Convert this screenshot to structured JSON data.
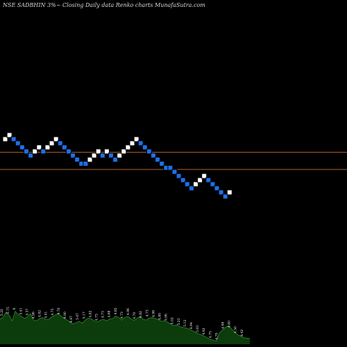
{
  "header": {
    "title": "NSE SADBHIN  3%~  Closing Daily data  Renko  charts MunafaSutra.com"
  },
  "colors": {
    "background": "#000000",
    "up_brick": "#ffffff",
    "down_brick": "#1e6fe8",
    "brick_outline": "#000000",
    "support_line": "#b4622e",
    "volume_fill": "#0c3b0c",
    "volume_line": "#2e8b2e"
  },
  "chart_data": [
    {
      "type": "renko",
      "title": "",
      "xlabel": "",
      "ylabel": "",
      "brick_size_pct": 3,
      "bricks": [
        {
          "dir": "up",
          "level": 0
        },
        {
          "dir": "up",
          "level": 1
        },
        {
          "dir": "down",
          "level": 0
        },
        {
          "dir": "down",
          "level": -1
        },
        {
          "dir": "down",
          "level": -2
        },
        {
          "dir": "down",
          "level": -3
        },
        {
          "dir": "down",
          "level": -4
        },
        {
          "dir": "up",
          "level": -3
        },
        {
          "dir": "up",
          "level": -2
        },
        {
          "dir": "down",
          "level": -3
        },
        {
          "dir": "up",
          "level": -2
        },
        {
          "dir": "up",
          "level": -1
        },
        {
          "dir": "up",
          "level": 0
        },
        {
          "dir": "down",
          "level": -1
        },
        {
          "dir": "down",
          "level": -2
        },
        {
          "dir": "down",
          "level": -3
        },
        {
          "dir": "down",
          "level": -4
        },
        {
          "dir": "down",
          "level": -5
        },
        {
          "dir": "down",
          "level": -6
        },
        {
          "dir": "down",
          "level": -6
        },
        {
          "dir": "up",
          "level": -5
        },
        {
          "dir": "up",
          "level": -4
        },
        {
          "dir": "up",
          "level": -3
        },
        {
          "dir": "down",
          "level": -4
        },
        {
          "dir": "up",
          "level": -3
        },
        {
          "dir": "down",
          "level": -4
        },
        {
          "dir": "down",
          "level": -5
        },
        {
          "dir": "up",
          "level": -4
        },
        {
          "dir": "up",
          "level": -3
        },
        {
          "dir": "up",
          "level": -2
        },
        {
          "dir": "up",
          "level": -1
        },
        {
          "dir": "up",
          "level": 0
        },
        {
          "dir": "down",
          "level": -1
        },
        {
          "dir": "down",
          "level": -2
        },
        {
          "dir": "down",
          "level": -3
        },
        {
          "dir": "down",
          "level": -4
        },
        {
          "dir": "down",
          "level": -5
        },
        {
          "dir": "down",
          "level": -6
        },
        {
          "dir": "down",
          "level": -7
        },
        {
          "dir": "down",
          "level": -7
        },
        {
          "dir": "down",
          "level": -8
        },
        {
          "dir": "down",
          "level": -9
        },
        {
          "dir": "down",
          "level": -10
        },
        {
          "dir": "down",
          "level": -11
        },
        {
          "dir": "down",
          "level": -12
        },
        {
          "dir": "up",
          "level": -11
        },
        {
          "dir": "up",
          "level": -10
        },
        {
          "dir": "up",
          "level": -9
        },
        {
          "dir": "down",
          "level": -10
        },
        {
          "dir": "down",
          "level": -11
        },
        {
          "dir": "down",
          "level": -12
        },
        {
          "dir": "down",
          "level": -13
        },
        {
          "dir": "down",
          "level": -14
        },
        {
          "dir": "up",
          "level": -13
        }
      ],
      "reference_lines": [
        {
          "level": -3.2
        },
        {
          "level": -7.4
        }
      ]
    },
    {
      "type": "area",
      "title": "",
      "xlabel": "",
      "ylabel": "",
      "ylim": [
        0,
        100
      ],
      "values": [
        62,
        67,
        80,
        72,
        58,
        82,
        74,
        70,
        64,
        68,
        76,
        60,
        58,
        64,
        66,
        61,
        62,
        68,
        72,
        76,
        70,
        64,
        60,
        55,
        50,
        54,
        57,
        52,
        60,
        65,
        63,
        58,
        55,
        60,
        62,
        58,
        63,
        64,
        70,
        66,
        60,
        67,
        69,
        63,
        59,
        65,
        68,
        62,
        60,
        65,
        66,
        64,
        61,
        57,
        58,
        55,
        50,
        46,
        48,
        44,
        42,
        40,
        38,
        34,
        30,
        26,
        24,
        20,
        16,
        12,
        10,
        8,
        28,
        35,
        42,
        46,
        38,
        30,
        24,
        20,
        16,
        15,
        14
      ],
      "value_labels": [
        {
          "text": "5.22",
          "at": 0.11
        },
        {
          "text": "5.75",
          "at": 0.12
        },
        {
          "text": "6",
          "at": 0.18
        },
        {
          "text": "5.41",
          "at": 0.13
        },
        {
          "text": "5.37",
          "at": 0.16
        },
        {
          "text": "4.96",
          "at": 0.18
        },
        {
          "text": "4.92",
          "at": 0.2
        },
        {
          "text": "5.01",
          "at": 0.23
        },
        {
          "text": "4.73",
          "at": 0.26
        },
        {
          "text": "4.70",
          "at": 0.28
        },
        {
          "text": "4.90",
          "at": 0.3
        },
        {
          "text": "4.87",
          "at": 0.33
        },
        {
          "text": "5.07",
          "at": 0.36
        },
        {
          "text": "5.17",
          "at": 0.38
        },
        {
          "text": "4.82",
          "at": 0.41
        },
        {
          "text": "4.73",
          "at": 0.43
        },
        {
          "text": "4.73",
          "at": 0.46
        },
        {
          "text": "4.68",
          "at": 0.48
        },
        {
          "text": "4.85",
          "at": 0.51
        },
        {
          "text": "4.73",
          "at": 0.53
        },
        {
          "text": "4.96",
          "at": 0.56
        },
        {
          "text": "4.70",
          "at": 0.58
        },
        {
          "text": "4.82",
          "at": 0.61
        },
        {
          "text": "4.73",
          "at": 0.63
        },
        {
          "text": "4.96",
          "at": 0.66
        },
        {
          "text": "4.80",
          "at": 0.68
        },
        {
          "text": "5.06",
          "at": 0.71
        },
        {
          "text": "5.02",
          "at": 0.73
        },
        {
          "text": "5.23",
          "at": 0.76
        },
        {
          "text": "5.12",
          "at": 0.78
        },
        {
          "text": "4.94",
          "at": 0.81
        },
        {
          "text": "5.03",
          "at": 0.83
        },
        {
          "text": "4.92",
          "at": 0.86
        },
        {
          "text": "4.75",
          "at": 0.88
        },
        {
          "text": "4.70",
          "at": 0.91
        },
        {
          "text": "4.68",
          "at": 0.93
        },
        {
          "text": "4.60",
          "at": 0.95
        },
        {
          "text": "4.50",
          "at": 0.97
        },
        {
          "text": "4.42",
          "at": 0.99
        }
      ]
    }
  ]
}
